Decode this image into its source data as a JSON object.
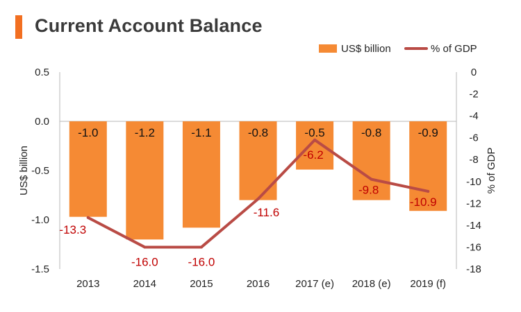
{
  "title": "Current Account Balance",
  "colors": {
    "accent": "#f26f21",
    "bar": "#f58a34",
    "line": "#b94b45",
    "line_label": "#c00000",
    "axis": "#b7b7b7"
  },
  "chart_data": {
    "type": "bar",
    "categories": [
      "2013",
      "2014",
      "2015",
      "2016",
      "2017 (e)",
      "2018 (e)",
      "2019 (f)"
    ],
    "series": [
      {
        "name": "US$ billion",
        "type": "bar",
        "axis": "left",
        "values": [
          -0.97,
          -1.2,
          -1.08,
          -0.8,
          -0.49,
          -0.8,
          -0.91
        ],
        "labels": [
          "-1.0",
          "-1.2",
          "-1.1",
          "-0.8",
          "-0.5",
          "-0.8",
          "-0.9"
        ]
      },
      {
        "name": "% of GDP",
        "type": "line",
        "axis": "right",
        "values": [
          -13.3,
          -16.0,
          -16.0,
          -11.6,
          -6.2,
          -9.8,
          -10.9
        ],
        "labels": [
          "-13.3",
          "-16.0",
          "-16.0",
          "-11.6",
          "-6.2",
          "-9.8",
          "-10.9"
        ]
      }
    ],
    "ylabel": "US$ billion",
    "ylabel_right": "% of GDP",
    "ylim": [
      -1.5,
      0.5
    ],
    "yticks": [
      "0.5",
      "0.0",
      "-0.5",
      "-1.0",
      "-1.5"
    ],
    "yticks_values": [
      0.5,
      0.0,
      -0.5,
      -1.0,
      -1.5
    ],
    "ylim_right": [
      -18,
      0
    ],
    "yticks_right": [
      "0",
      "-2",
      "-4",
      "-6",
      "-8",
      "-10",
      "-12",
      "-14",
      "-16",
      "-18"
    ],
    "yticks_right_values": [
      0,
      -2,
      -4,
      -6,
      -8,
      -10,
      -12,
      -14,
      -16,
      -18
    ],
    "legend_position": "top-right",
    "grid": false
  }
}
